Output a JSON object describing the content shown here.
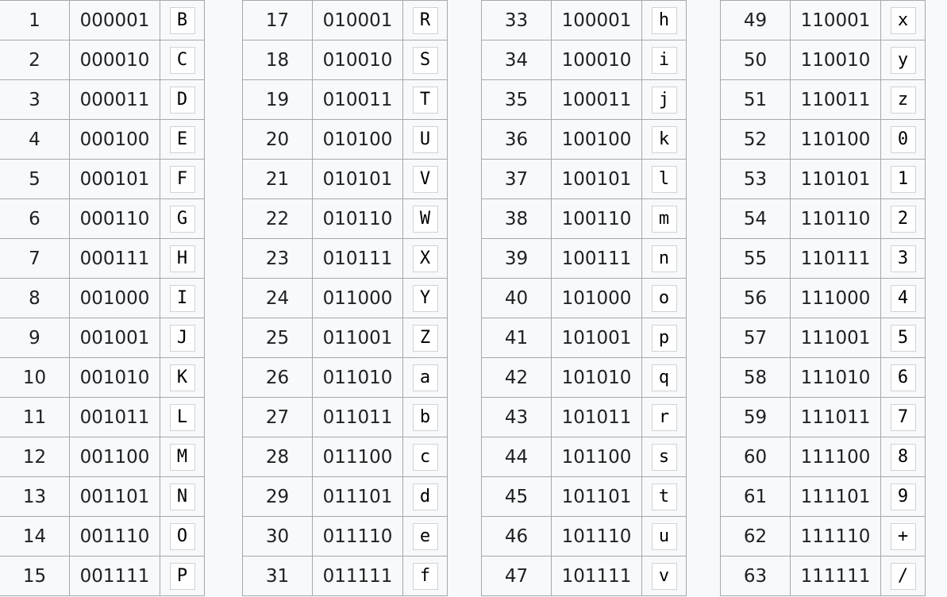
{
  "groups": [
    {
      "rows": [
        {
          "index": "1",
          "binary": "000001",
          "char": "B"
        },
        {
          "index": "2",
          "binary": "000010",
          "char": "C"
        },
        {
          "index": "3",
          "binary": "000011",
          "char": "D"
        },
        {
          "index": "4",
          "binary": "000100",
          "char": "E"
        },
        {
          "index": "5",
          "binary": "000101",
          "char": "F"
        },
        {
          "index": "6",
          "binary": "000110",
          "char": "G"
        },
        {
          "index": "7",
          "binary": "000111",
          "char": "H"
        },
        {
          "index": "8",
          "binary": "001000",
          "char": "I"
        },
        {
          "index": "9",
          "binary": "001001",
          "char": "J"
        },
        {
          "index": "10",
          "binary": "001010",
          "char": "K"
        },
        {
          "index": "11",
          "binary": "001011",
          "char": "L"
        },
        {
          "index": "12",
          "binary": "001100",
          "char": "M"
        },
        {
          "index": "13",
          "binary": "001101",
          "char": "N"
        },
        {
          "index": "14",
          "binary": "001110",
          "char": "O"
        },
        {
          "index": "15",
          "binary": "001111",
          "char": "P"
        }
      ]
    },
    {
      "rows": [
        {
          "index": "17",
          "binary": "010001",
          "char": "R"
        },
        {
          "index": "18",
          "binary": "010010",
          "char": "S"
        },
        {
          "index": "19",
          "binary": "010011",
          "char": "T"
        },
        {
          "index": "20",
          "binary": "010100",
          "char": "U"
        },
        {
          "index": "21",
          "binary": "010101",
          "char": "V"
        },
        {
          "index": "22",
          "binary": "010110",
          "char": "W"
        },
        {
          "index": "23",
          "binary": "010111",
          "char": "X"
        },
        {
          "index": "24",
          "binary": "011000",
          "char": "Y"
        },
        {
          "index": "25",
          "binary": "011001",
          "char": "Z"
        },
        {
          "index": "26",
          "binary": "011010",
          "char": "a"
        },
        {
          "index": "27",
          "binary": "011011",
          "char": "b"
        },
        {
          "index": "28",
          "binary": "011100",
          "char": "c"
        },
        {
          "index": "29",
          "binary": "011101",
          "char": "d"
        },
        {
          "index": "30",
          "binary": "011110",
          "char": "e"
        },
        {
          "index": "31",
          "binary": "011111",
          "char": "f"
        }
      ]
    },
    {
      "rows": [
        {
          "index": "33",
          "binary": "100001",
          "char": "h"
        },
        {
          "index": "34",
          "binary": "100010",
          "char": "i"
        },
        {
          "index": "35",
          "binary": "100011",
          "char": "j"
        },
        {
          "index": "36",
          "binary": "100100",
          "char": "k"
        },
        {
          "index": "37",
          "binary": "100101",
          "char": "l"
        },
        {
          "index": "38",
          "binary": "100110",
          "char": "m"
        },
        {
          "index": "39",
          "binary": "100111",
          "char": "n"
        },
        {
          "index": "40",
          "binary": "101000",
          "char": "o"
        },
        {
          "index": "41",
          "binary": "101001",
          "char": "p"
        },
        {
          "index": "42",
          "binary": "101010",
          "char": "q"
        },
        {
          "index": "43",
          "binary": "101011",
          "char": "r"
        },
        {
          "index": "44",
          "binary": "101100",
          "char": "s"
        },
        {
          "index": "45",
          "binary": "101101",
          "char": "t"
        },
        {
          "index": "46",
          "binary": "101110",
          "char": "u"
        },
        {
          "index": "47",
          "binary": "101111",
          "char": "v"
        }
      ]
    },
    {
      "rows": [
        {
          "index": "49",
          "binary": "110001",
          "char": "x"
        },
        {
          "index": "50",
          "binary": "110010",
          "char": "y"
        },
        {
          "index": "51",
          "binary": "110011",
          "char": "z"
        },
        {
          "index": "52",
          "binary": "110100",
          "char": "0"
        },
        {
          "index": "53",
          "binary": "110101",
          "char": "1"
        },
        {
          "index": "54",
          "binary": "110110",
          "char": "2"
        },
        {
          "index": "55",
          "binary": "110111",
          "char": "3"
        },
        {
          "index": "56",
          "binary": "111000",
          "char": "4"
        },
        {
          "index": "57",
          "binary": "111001",
          "char": "5"
        },
        {
          "index": "58",
          "binary": "111010",
          "char": "6"
        },
        {
          "index": "59",
          "binary": "111011",
          "char": "7"
        },
        {
          "index": "60",
          "binary": "111100",
          "char": "8"
        },
        {
          "index": "61",
          "binary": "111101",
          "char": "9"
        },
        {
          "index": "62",
          "binary": "111110",
          "char": "+"
        },
        {
          "index": "63",
          "binary": "111111",
          "char": "/"
        }
      ]
    }
  ],
  "colors": {
    "border": "#a2a9b1",
    "cell_background": "#f8f9fa",
    "chip_background": "#ffffff",
    "chip_border": "#cfd3d7",
    "text": "#202122"
  }
}
